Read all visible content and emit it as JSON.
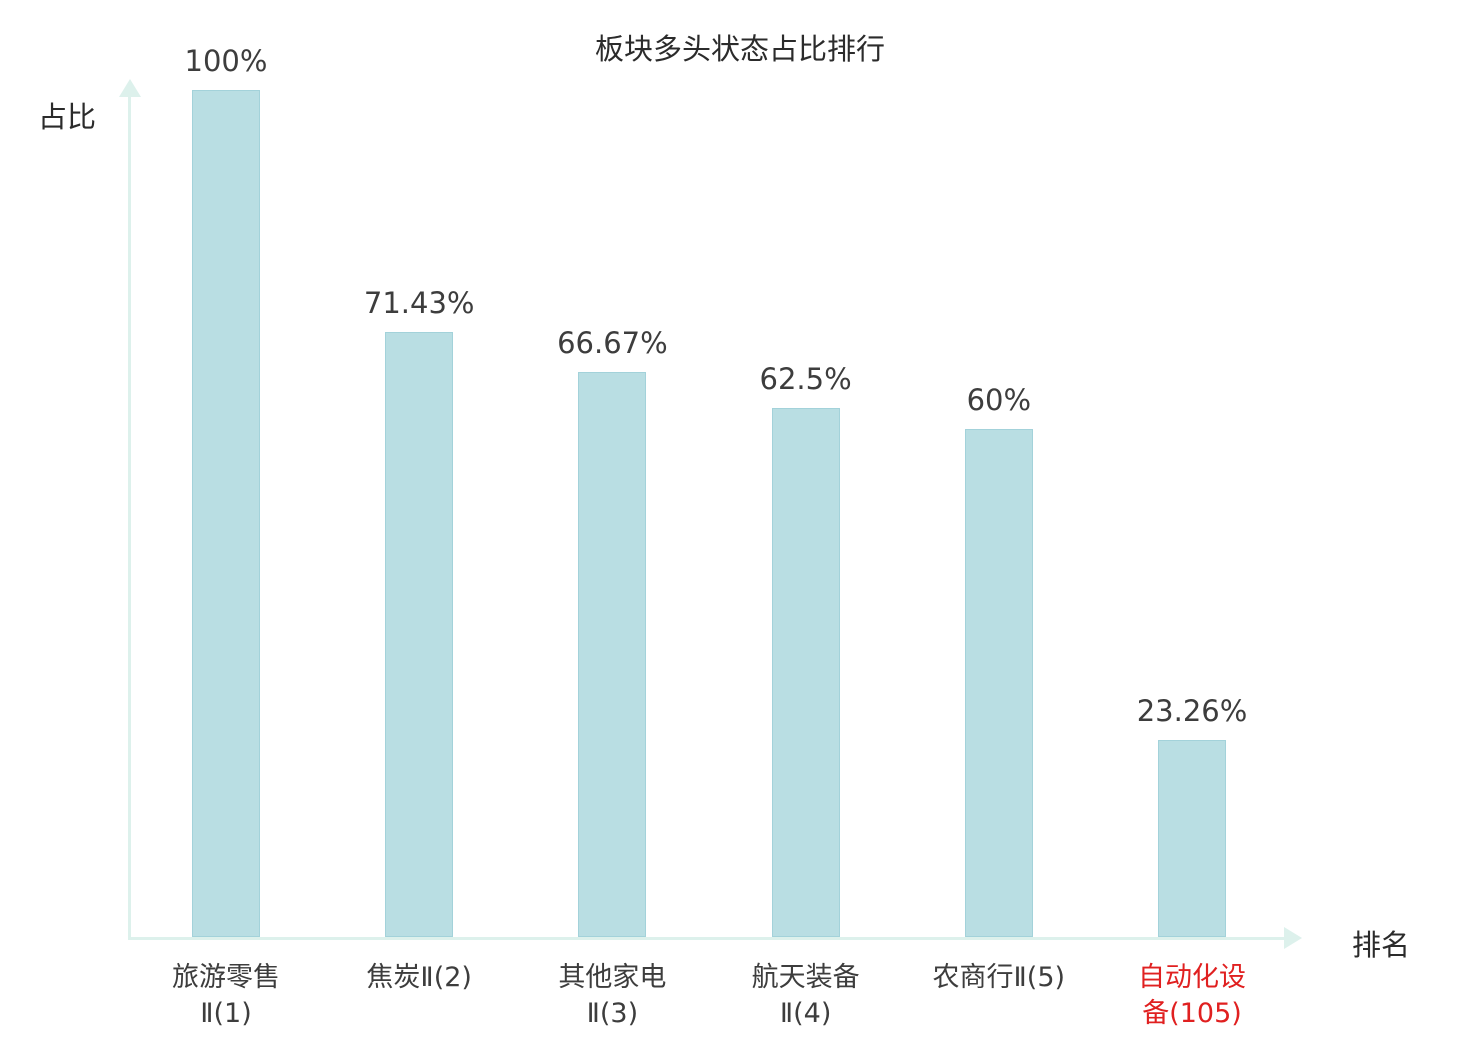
{
  "title": "板块多头状态占比排行",
  "y_axis_label": "占比",
  "x_axis_label": "排名",
  "colors": {
    "bar_fill": "#b9dee3",
    "bar_border": "#a3d2da",
    "axis": "#ddf1ec",
    "text": "#3d3d3d",
    "highlight": "#e02020"
  },
  "chart_data": {
    "type": "bar",
    "title": "板块多头状态占比排行",
    "xlabel": "排名",
    "ylabel": "占比",
    "ylim": [
      0,
      100
    ],
    "grid": false,
    "legend": "none",
    "categories": [
      "旅游零售Ⅱ(1)",
      "焦炭Ⅱ(2)",
      "其他家电Ⅱ(3)",
      "航天装备Ⅱ(4)",
      "农商行Ⅱ(5)",
      "自动化设备(105)"
    ],
    "values": [
      100,
      71.43,
      66.67,
      62.5,
      60,
      23.26
    ],
    "bars": [
      {
        "category_lines": [
          "旅游零售",
          "Ⅱ(1)"
        ],
        "value": 100,
        "value_label": "100%",
        "label_color": "default"
      },
      {
        "category_lines": [
          "焦炭Ⅱ(2)"
        ],
        "value": 71.43,
        "value_label": "71.43%",
        "label_color": "default"
      },
      {
        "category_lines": [
          "其他家电",
          "Ⅱ(3)"
        ],
        "value": 66.67,
        "value_label": "66.67%",
        "label_color": "default"
      },
      {
        "category_lines": [
          "航天装备",
          "Ⅱ(4)"
        ],
        "value": 62.5,
        "value_label": "62.5%",
        "label_color": "default"
      },
      {
        "category_lines": [
          "农商行Ⅱ(5)"
        ],
        "value": 60,
        "value_label": "60%",
        "label_color": "default"
      },
      {
        "category_lines": [
          "自动化设",
          "备(105)"
        ],
        "value": 23.26,
        "value_label": "23.26%",
        "label_color": "highlight"
      }
    ]
  }
}
